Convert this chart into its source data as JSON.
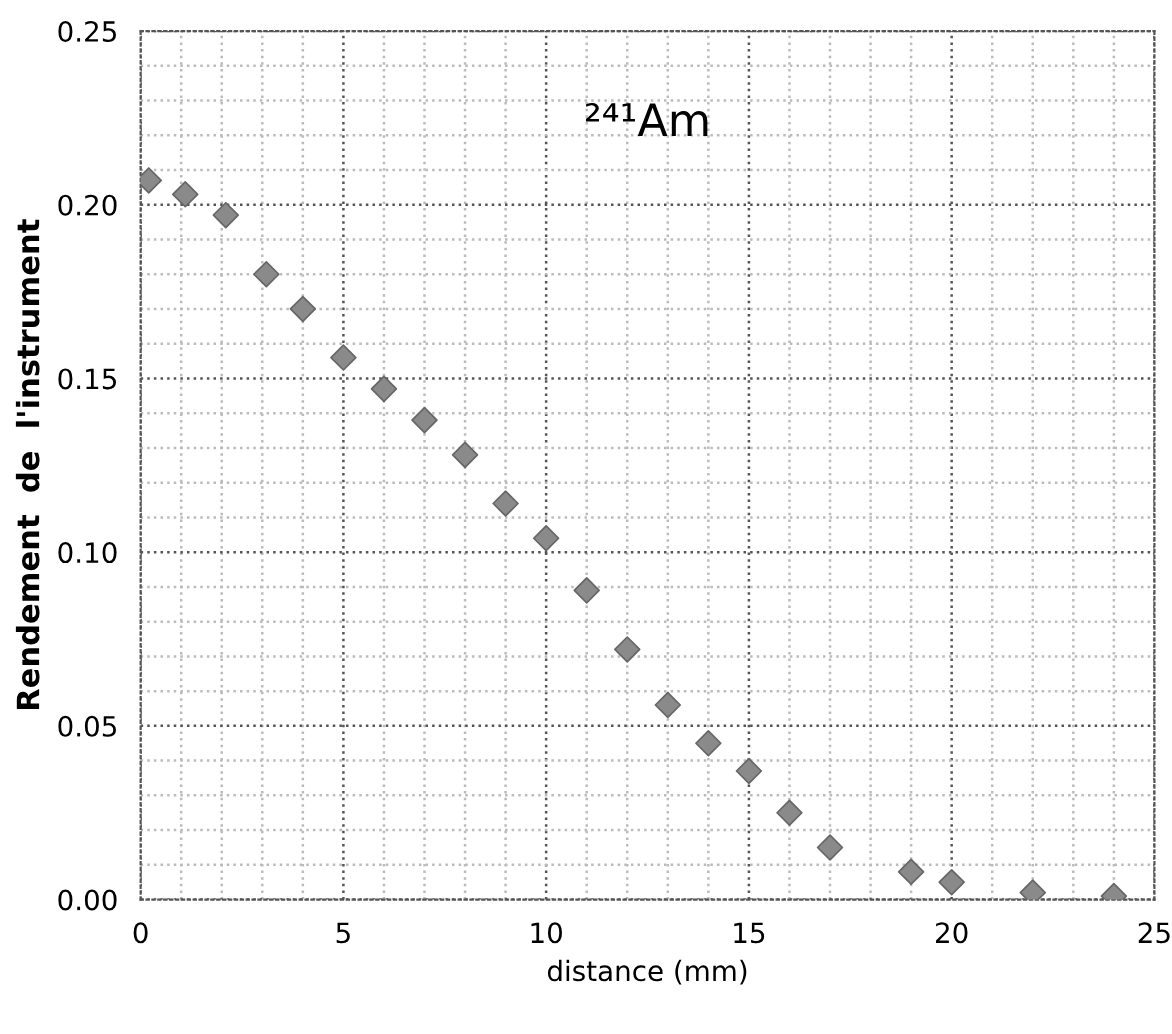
{
  "chart_data": {
    "type": "scatter",
    "title": "²⁴¹Am",
    "xlabel": "distance (mm)",
    "ylabel": "Rendement  de  l'instrument",
    "x": [
      0.2,
      1.1,
      2.1,
      3.1,
      4,
      5,
      6,
      7,
      8,
      9,
      10,
      11,
      12,
      13,
      14,
      15,
      16,
      17,
      19,
      20,
      22,
      24
    ],
    "series": [
      {
        "color": "#8a8a8a",
        "values": [
          0.207,
          0.203,
          0.197,
          0.18,
          0.17,
          0.156,
          0.147,
          0.138,
          0.128,
          0.114,
          0.104,
          0.089,
          0.072,
          0.056,
          0.045,
          0.037,
          0.025,
          0.015,
          0.008,
          0.005,
          0.002,
          0.001
        ]
      }
    ],
    "xlim": [
      0,
      25
    ],
    "ylim": [
      0,
      0.25
    ],
    "xticks": [
      0,
      5,
      10,
      15,
      20,
      25
    ],
    "yticks": [
      {
        "value": 0,
        "label": "0.00"
      },
      {
        "value": 0.05,
        "label": "0.05"
      },
      {
        "value": 0.1,
        "label": "0.10"
      },
      {
        "value": 0.15,
        "label": "0.15"
      },
      {
        "value": 0.2,
        "label": "0.20"
      },
      {
        "value": 0.25,
        "label": "0.25"
      }
    ],
    "grid": true,
    "marker": "diamond"
  }
}
